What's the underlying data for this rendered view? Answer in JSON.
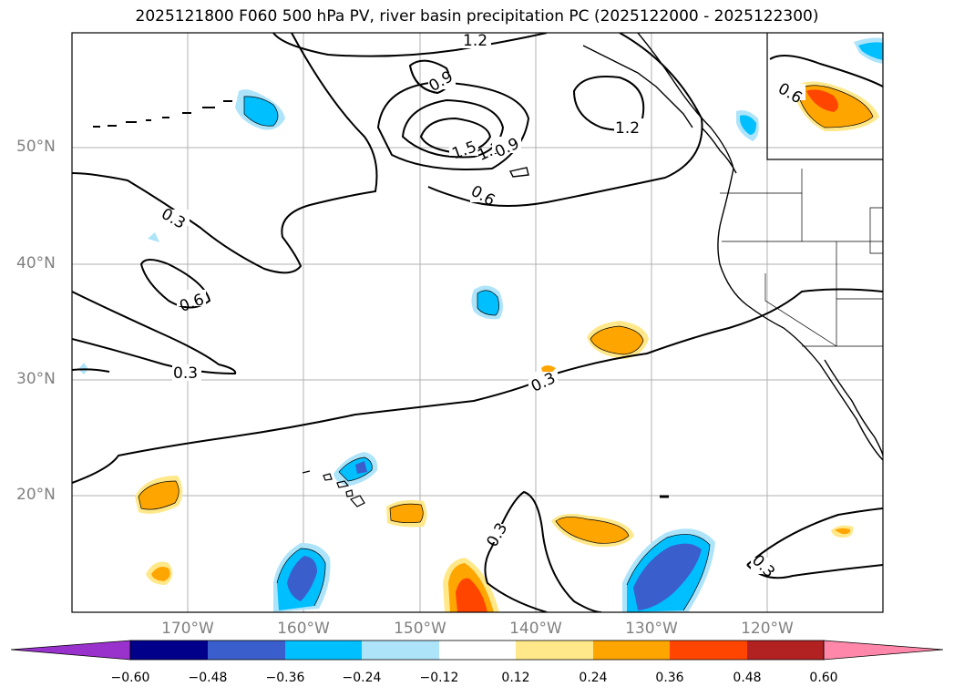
{
  "title": "2025121800 F060 500 hPa PV, river basin precipitation PC (2025122000 - 2025122300)",
  "lat_labels": [
    "50°N",
    "40°N",
    "30°N",
    "20°N"
  ],
  "lon_labels": [
    "170°W",
    "160°W",
    "150°W",
    "140°W",
    "130°W",
    "120°W"
  ],
  "contour_labels": [
    "1.2",
    "0.9",
    "1.2",
    "1.5",
    "1.2",
    "0.9",
    "0.6",
    "0.6",
    "0.3",
    "0.6",
    "0.3",
    "0.3",
    "0.3",
    "0.3"
  ],
  "colorbar": {
    "ticks": [
      "−0.60",
      "−0.48",
      "−0.36",
      "−0.24",
      "−0.12",
      "0.12",
      "0.24",
      "0.36",
      "0.48",
      "0.60"
    ],
    "colors": [
      "#9932cc",
      "#00008b",
      "#3a5fcd",
      "#00bfff",
      "#aee4fa",
      "#ffffff",
      "#ffe88a",
      "#ffa500",
      "#ff4500",
      "#b22222",
      "#ff88aa"
    ]
  }
}
